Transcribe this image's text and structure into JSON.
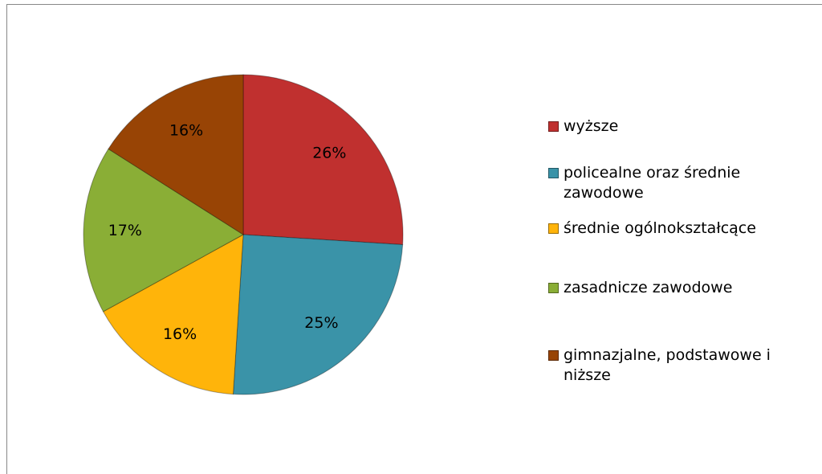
{
  "chart_data": {
    "type": "pie",
    "categories": [
      "wyższe",
      "policealne oraz średnie zawodowe",
      "średnie ogólnokształcące",
      "zasadnicze zawodowe",
      "gimnazjalne, podstawowe i niższe"
    ],
    "values": [
      26,
      25,
      16,
      17,
      16
    ],
    "value_labels": [
      "26%",
      "25%",
      "16%",
      "17%",
      "16%"
    ],
    "colors": [
      "#c0302f",
      "#3a93a8",
      "#ffb40a",
      "#8aae36",
      "#984405"
    ],
    "legend": "right"
  }
}
